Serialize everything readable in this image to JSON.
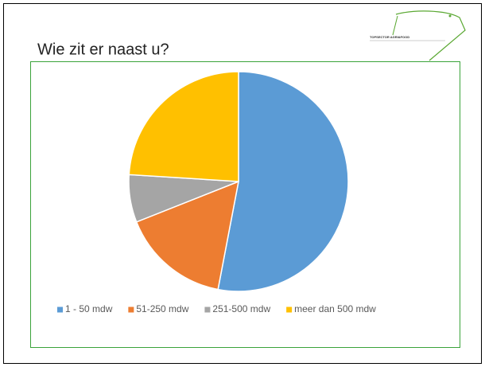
{
  "header": {
    "logo": "TOPSECTOR AGRI&FOOD"
  },
  "chart_data": {
    "type": "pie",
    "title": "Wie zit er naast u?",
    "categories": [
      "1 - 50 mdw",
      "51-250 mdw",
      "251-500 mdw",
      "meer dan 500 mdw"
    ],
    "values": [
      53,
      16,
      7,
      24
    ],
    "colors": [
      "#5b9bd5",
      "#ed7d31",
      "#a5a5a5",
      "#ffc000"
    ],
    "legend": "bottom"
  }
}
